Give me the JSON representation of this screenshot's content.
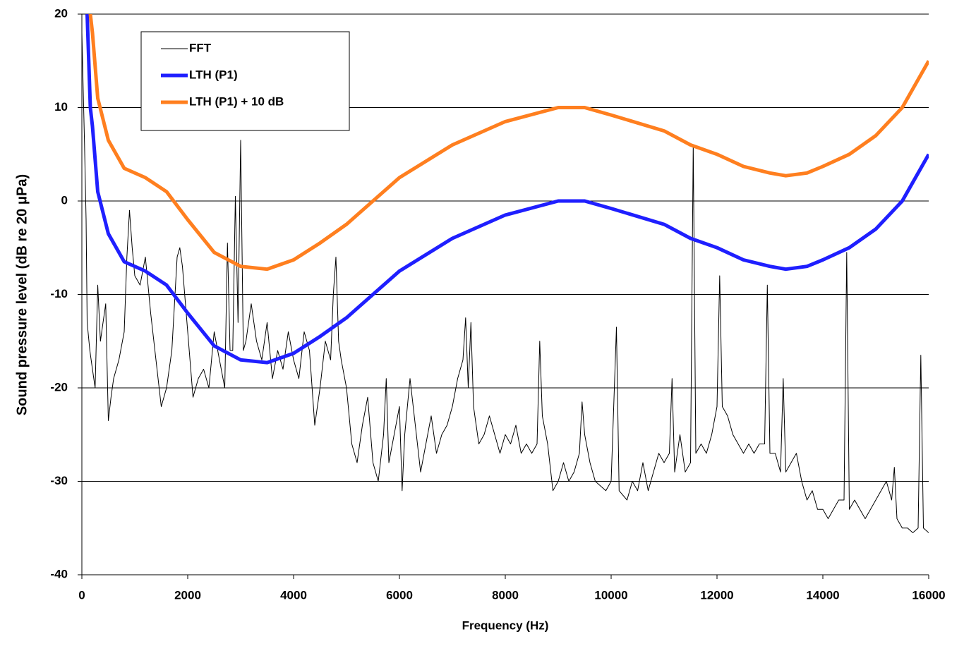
{
  "chart_data": {
    "type": "line",
    "x_label": "Frequency (Hz)",
    "y_label": "Sound pressure level (dB re 20 μPa)",
    "xlim": [
      0,
      16000
    ],
    "xticks": [
      0,
      2000,
      4000,
      6000,
      8000,
      10000,
      12000,
      14000,
      16000
    ],
    "ylim": [
      -40,
      20
    ],
    "yticks": [
      -40,
      -30,
      -20,
      -10,
      0,
      10,
      20
    ],
    "grid": true,
    "legend": "upper-left",
    "series": [
      {
        "name": "FFT",
        "color": "#000000",
        "width": 1,
        "x": [
          0,
          50,
          80,
          100,
          150,
          200,
          250,
          300,
          350,
          400,
          450,
          500,
          550,
          600,
          700,
          800,
          850,
          900,
          950,
          1000,
          1100,
          1200,
          1300,
          1400,
          1500,
          1600,
          1700,
          1800,
          1850,
          1900,
          2000,
          2100,
          2200,
          2300,
          2400,
          2500,
          2600,
          2700,
          2750,
          2800,
          2850,
          2900,
          2950,
          3000,
          3050,
          3100,
          3200,
          3300,
          3400,
          3500,
          3600,
          3700,
          3800,
          3900,
          4000,
          4100,
          4200,
          4300,
          4400,
          4500,
          4600,
          4700,
          4750,
          4800,
          4850,
          4900,
          5000,
          5100,
          5200,
          5300,
          5400,
          5500,
          5600,
          5700,
          5750,
          5800,
          5900,
          6000,
          6050,
          6100,
          6200,
          6300,
          6400,
          6500,
          6600,
          6700,
          6800,
          6900,
          7000,
          7100,
          7200,
          7250,
          7300,
          7350,
          7400,
          7500,
          7600,
          7700,
          7800,
          7900,
          8000,
          8100,
          8200,
          8300,
          8400,
          8500,
          8600,
          8650,
          8700,
          8800,
          8900,
          9000,
          9100,
          9200,
          9300,
          9400,
          9450,
          9500,
          9600,
          9700,
          9800,
          9900,
          10000,
          10100,
          10150,
          10300,
          10400,
          10500,
          10600,
          10700,
          10800,
          10900,
          11000,
          11100,
          11150,
          11200,
          11300,
          11400,
          11500,
          11550,
          11600,
          11700,
          11800,
          11900,
          12000,
          12050,
          12100,
          12200,
          12300,
          12400,
          12500,
          12600,
          12700,
          12800,
          12900,
          12950,
          13000,
          13100,
          13200,
          13250,
          13300,
          13400,
          13500,
          13600,
          13700,
          13800,
          13900,
          14000,
          14100,
          14200,
          14300,
          14400,
          14450,
          14500,
          14600,
          14700,
          14800,
          14900,
          15000,
          15100,
          15200,
          15300,
          15350,
          15400,
          15500,
          15600,
          15700,
          15800,
          15850,
          15900,
          16000
        ],
        "values": [
          18,
          6,
          -2,
          -13,
          -16,
          -18,
          -20,
          -9,
          -15,
          -13,
          -11,
          -23.5,
          -21,
          -19,
          -17,
          -14,
          -6,
          -1,
          -5,
          -8,
          -9,
          -6,
          -12,
          -17,
          -22,
          -20,
          -16,
          -6,
          -5,
          -7,
          -14,
          -21,
          -19,
          -18,
          -20,
          -14,
          -17,
          -20,
          -4.5,
          -16,
          -16,
          0.5,
          -13,
          6.5,
          -16,
          -15,
          -11,
          -15,
          -17,
          -13,
          -19,
          -16,
          -18,
          -14,
          -17,
          -19,
          -14,
          -16,
          -24,
          -20,
          -15,
          -17,
          -10,
          -6,
          -15,
          -17,
          -20,
          -26,
          -28,
          -24,
          -21,
          -28,
          -30,
          -25,
          -19,
          -28,
          -25,
          -22,
          -31,
          -25,
          -19,
          -24,
          -29,
          -26,
          -23,
          -27,
          -25,
          -24,
          -22,
          -19,
          -17,
          -12.5,
          -20,
          -13,
          -22,
          -26,
          -25,
          -23,
          -25,
          -27,
          -25,
          -26,
          -24,
          -27,
          -26,
          -27,
          -26,
          -15,
          -23,
          -26,
          -31,
          -30,
          -28,
          -30,
          -29,
          -27,
          -21.5,
          -25,
          -28,
          -30,
          -30.5,
          -31,
          -30,
          -13.5,
          -31,
          -32,
          -30,
          -31,
          -28,
          -31,
          -29,
          -27,
          -28,
          -27,
          -19,
          -29,
          -25,
          -29,
          -28,
          6,
          -27,
          -26,
          -27,
          -25,
          -22,
          -8,
          -22,
          -23,
          -25,
          -26,
          -27,
          -26,
          -27,
          -26,
          -26,
          -9,
          -27,
          -27,
          -29,
          -19,
          -29,
          -28,
          -27,
          -30,
          -32,
          -31,
          -33,
          -33,
          -34,
          -33,
          -32,
          -32,
          -5.5,
          -33,
          -32,
          -33,
          -34,
          -33,
          -32,
          -31,
          -30,
          -32,
          -28.5,
          -34,
          -35,
          -35,
          -35.5,
          -35,
          -16.5,
          -35,
          -35.5
        ]
      },
      {
        "name": "LTH (P1)",
        "color": "#1f1fff",
        "width": 5,
        "x": [
          100,
          160,
          200,
          300,
          500,
          800,
          1200,
          1600,
          2000,
          2500,
          3000,
          3500,
          4000,
          4500,
          5000,
          6000,
          7000,
          8000,
          9000,
          9500,
          10000,
          11000,
          11500,
          12000,
          12500,
          13000,
          13300,
          13700,
          14000,
          14500,
          15000,
          15500,
          16000
        ],
        "values": [
          20,
          10,
          8,
          1,
          -3.5,
          -6.5,
          -7.5,
          -9,
          -12,
          -15.5,
          -17,
          -17.3,
          -16.3,
          -14.5,
          -12.5,
          -7.5,
          -4,
          -1.5,
          0,
          0,
          -0.8,
          -2.5,
          -4,
          -5,
          -6.3,
          -7,
          -7.3,
          -7,
          -6.3,
          -5,
          -3,
          0,
          5
        ]
      },
      {
        "name": "LTH (P1) + 10 dB",
        "color": "#ff7f1f",
        "width": 5,
        "x": [
          160,
          200,
          300,
          500,
          800,
          1200,
          1600,
          2000,
          2500,
          3000,
          3500,
          4000,
          4500,
          5000,
          6000,
          7000,
          8000,
          9000,
          9500,
          10000,
          11000,
          11500,
          12000,
          12500,
          13000,
          13300,
          13700,
          14000,
          14500,
          15000,
          15500,
          16000
        ],
        "values": [
          20,
          18,
          11,
          6.5,
          3.5,
          2.5,
          1,
          -2,
          -5.5,
          -7,
          -7.3,
          -6.3,
          -4.5,
          -2.5,
          2.5,
          6,
          8.5,
          10,
          10,
          9.2,
          7.5,
          6,
          5,
          3.7,
          3,
          2.7,
          3,
          3.7,
          5,
          7,
          10,
          15
        ]
      }
    ]
  }
}
